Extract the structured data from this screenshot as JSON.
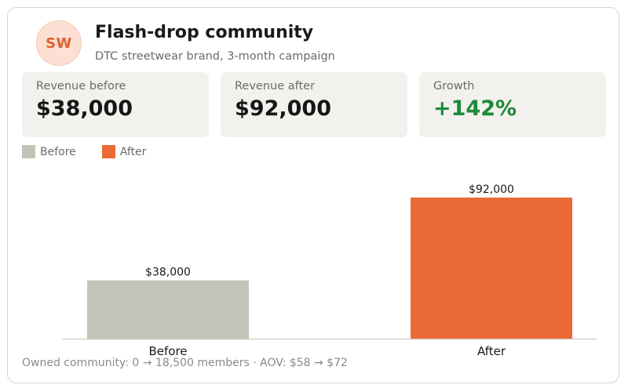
{
  "header": {
    "avatar_initials": "SW",
    "title": "Flash-drop community",
    "subtitle": "DTC streetwear brand, 3-month campaign"
  },
  "stats": [
    {
      "label": "Revenue before",
      "value": "$38,000"
    },
    {
      "label": "Revenue after",
      "value": "$92,000"
    },
    {
      "label": "Growth",
      "value": "+142%"
    }
  ],
  "legend": [
    {
      "label": "Before",
      "color": "#c4c3b7"
    },
    {
      "label": "After",
      "color": "#ea6935"
    }
  ],
  "chart_data": {
    "type": "bar",
    "categories": [
      "Before",
      "After"
    ],
    "values": [
      38000,
      92000
    ],
    "data_labels": [
      "$38,000",
      "$92,000"
    ],
    "colors": [
      "#c4c3b7",
      "#ea6935"
    ],
    "ylim": [
      0,
      100000
    ],
    "grid": false,
    "legend_position": "top-left"
  },
  "footer": {
    "text": "Owned community: 0 → 18,500 members   ·   AOV: $58 → $72"
  },
  "colors": {
    "accent": "#ea6935",
    "growth": "#1e8a3c",
    "neutral": "#c4c3b7"
  }
}
